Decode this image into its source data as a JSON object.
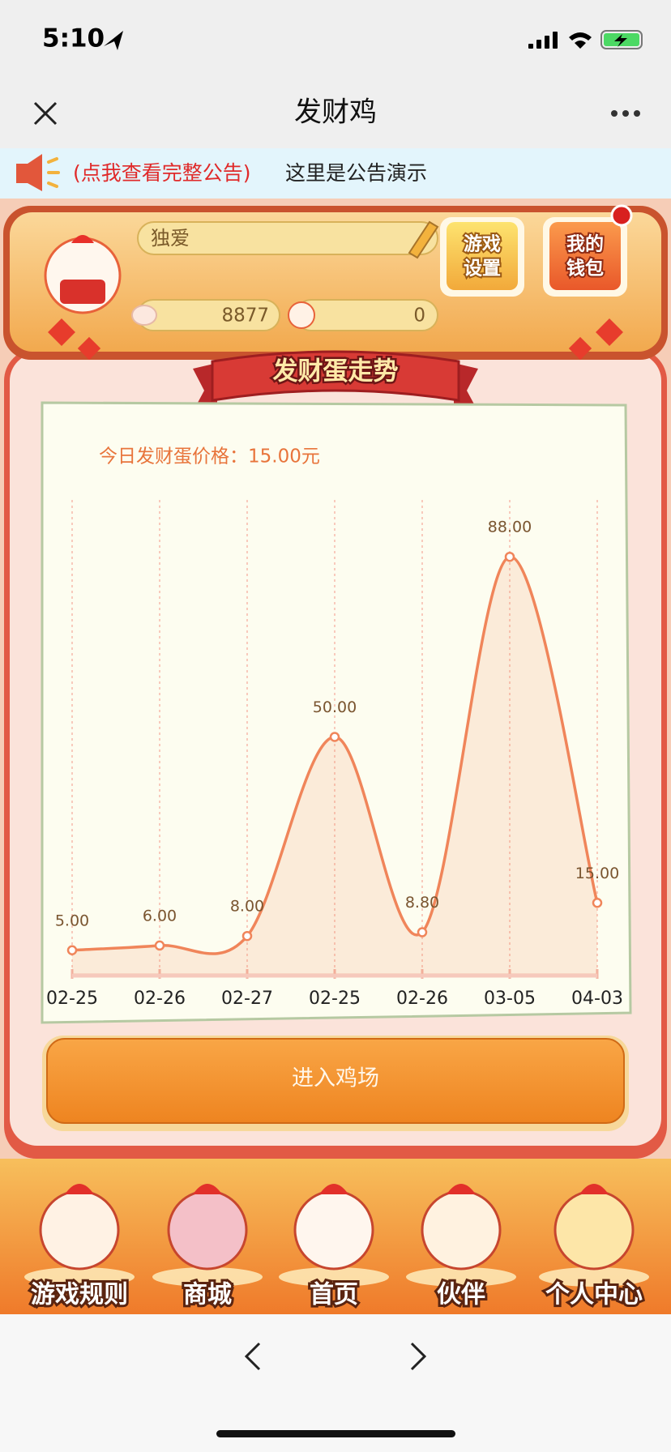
{
  "status_bar": {
    "time": "5:10"
  },
  "nav_bar": {
    "title": "发财鸡"
  },
  "notice": {
    "link": "(点我查看完整公告)",
    "text": "这里是公告演示"
  },
  "profile": {
    "name": "独爱",
    "eggs": 8877,
    "chickens": 0
  },
  "buttons": [
    {
      "lines": [
        "游戏",
        "设置"
      ]
    },
    {
      "lines": [
        "我的",
        "钱包"
      ]
    }
  ],
  "banner": "发财蛋走势",
  "chart_data": {
    "type": "line",
    "title": "今日发财蛋价格：15.00元",
    "categories": [
      "02-25",
      "02-26",
      "02-27",
      "02-25",
      "02-26",
      "03-05",
      "04-03"
    ],
    "values": [
      5,
      6,
      8,
      50,
      8.8,
      88,
      15
    ],
    "value_labels": [
      "5.00",
      "6.00",
      "8.00",
      "50.00",
      "8.80",
      "88.00",
      "15.00"
    ],
    "color": "#f0855a",
    "ylim": [
      0,
      100
    ]
  },
  "enter_button": "进入鸡场",
  "tabs": [
    "游戏规则",
    "商城",
    "首页",
    "伙伴",
    "个人中心"
  ]
}
